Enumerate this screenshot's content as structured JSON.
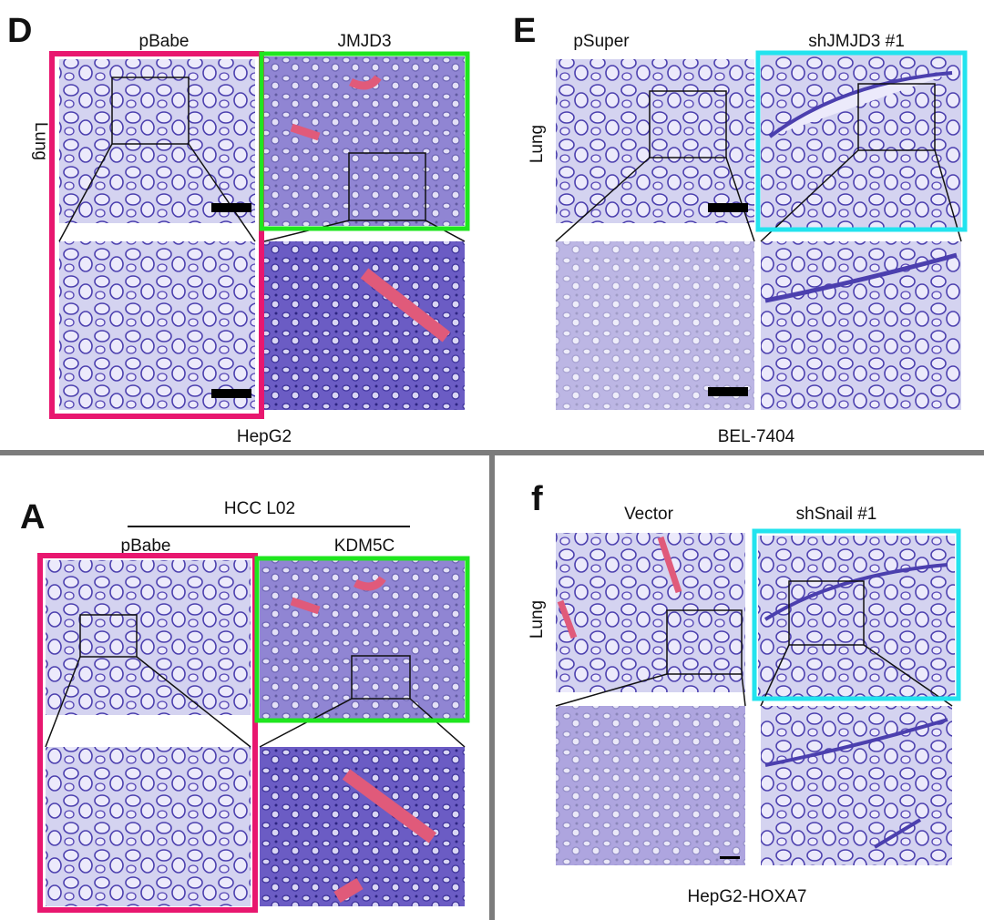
{
  "panels": [
    {
      "label": "D",
      "row_label": "Lung",
      "columns": [
        "pBabe",
        "JMJD3"
      ],
      "cell_line": "HepG2"
    },
    {
      "label": "E",
      "row_label": "Lung",
      "columns": [
        "pSuper",
        "shJMJD3 #1"
      ],
      "cell_line": "BEL-7404"
    },
    {
      "label": "A",
      "header": "HCC L02",
      "columns": [
        "pBabe",
        "KDM5C"
      ]
    },
    {
      "label": "f",
      "row_label": "Lung",
      "columns": [
        "Vector",
        "shSnail #1"
      ],
      "cell_line": "HepG2-HOXA7"
    }
  ]
}
